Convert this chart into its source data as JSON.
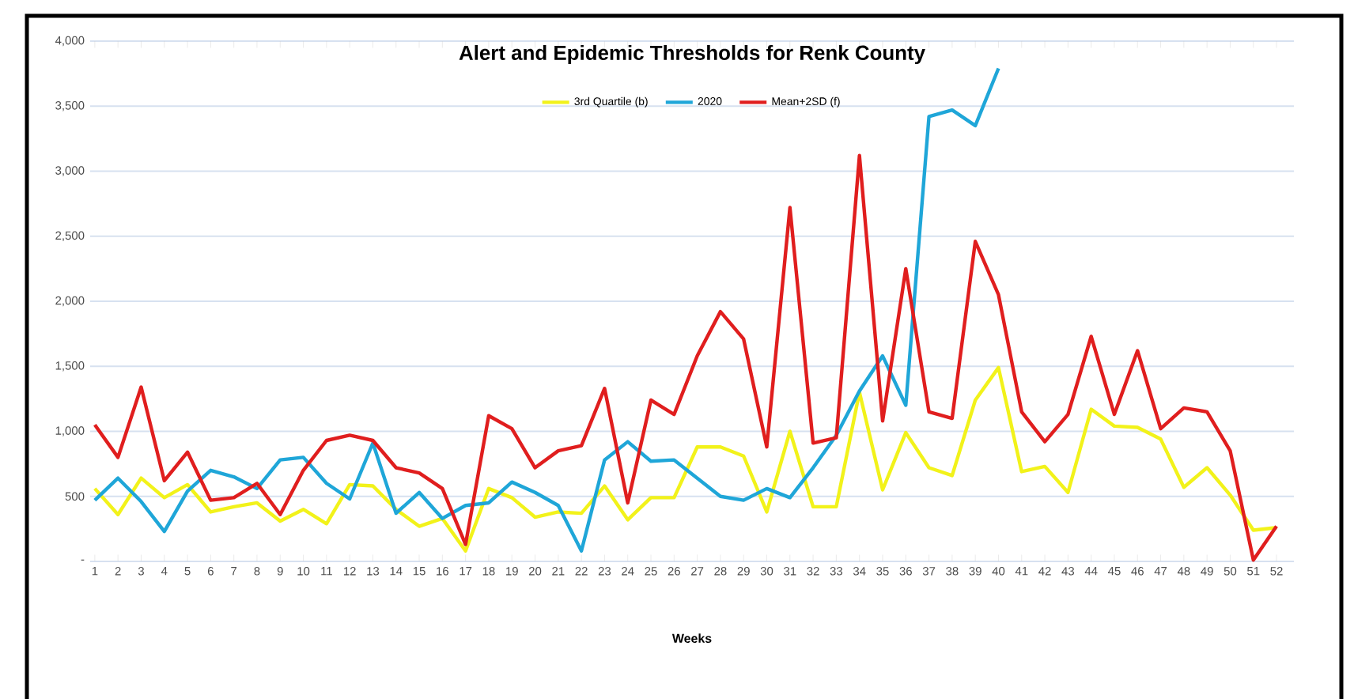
{
  "chart_data": {
    "type": "line",
    "title": "Alert and Epidemic Thresholds for Renk County",
    "xlabel": "Weeks",
    "categories": [
      "1",
      "2",
      "3",
      "4",
      "5",
      "6",
      "7",
      "8",
      "9",
      "10",
      "11",
      "12",
      "13",
      "14",
      "15",
      "16",
      "17",
      "18",
      "19",
      "20",
      "21",
      "22",
      "23",
      "24",
      "25",
      "26",
      "27",
      "28",
      "29",
      "30",
      "31",
      "32",
      "33",
      "34",
      "35",
      "36",
      "37",
      "38",
      "39",
      "40",
      "41",
      "42",
      "43",
      "44",
      "45",
      "46",
      "47",
      "48",
      "49",
      "50",
      "51",
      "52"
    ],
    "series": [
      {
        "name": "3rd Quartile (b)",
        "color": "#f2f21a",
        "values": [
          560,
          360,
          640,
          490,
          590,
          380,
          420,
          450,
          310,
          400,
          290,
          590,
          580,
          400,
          270,
          330,
          80,
          560,
          490,
          340,
          380,
          370,
          580,
          320,
          490,
          490,
          880,
          880,
          810,
          380,
          1000,
          420,
          420,
          1300,
          550,
          990,
          720,
          660,
          1240,
          1490,
          690,
          730,
          530,
          1170,
          1040,
          1030,
          940,
          570,
          720,
          510,
          240,
          260
        ]
      },
      {
        "name": "2020",
        "color": "#1fa6d8",
        "values": [
          470,
          640,
          460,
          230,
          540,
          700,
          650,
          560,
          780,
          800,
          600,
          480,
          910,
          370,
          530,
          330,
          430,
          450,
          610,
          530,
          430,
          80,
          780,
          920,
          770,
          780,
          640,
          500,
          470,
          560,
          490,
          720,
          970,
          1310,
          1580,
          1200,
          3420,
          3470,
          3350,
          3790,
          null,
          null,
          null,
          null,
          null,
          null,
          null,
          null,
          null,
          null,
          null,
          null
        ]
      },
      {
        "name": "Mean+2SD (f)",
        "color": "#e01e1e",
        "values": [
          1050,
          800,
          1340,
          620,
          840,
          470,
          490,
          600,
          360,
          700,
          930,
          970,
          930,
          720,
          680,
          560,
          130,
          1120,
          1020,
          720,
          850,
          890,
          1330,
          450,
          1240,
          1130,
          1580,
          1920,
          1710,
          880,
          2720,
          910,
          950,
          3120,
          1080,
          2250,
          1150,
          1100,
          2460,
          2050,
          1150,
          920,
          1130,
          1730,
          1130,
          1620,
          1020,
          1180,
          1150,
          850,
          10,
          270
        ]
      }
    ],
    "ylim": [
      0,
      4000
    ],
    "yticks": [
      {
        "value": 0,
        "label": "-"
      },
      {
        "value": 500,
        "label": "500"
      },
      {
        "value": 1000,
        "label": "1,000"
      },
      {
        "value": 1500,
        "label": "1,500"
      },
      {
        "value": 2000,
        "label": "2,000"
      },
      {
        "value": 2500,
        "label": "2,500"
      },
      {
        "value": 3000,
        "label": "3,000"
      },
      {
        "value": 3500,
        "label": "3,500"
      },
      {
        "value": 4000,
        "label": "4,000"
      }
    ],
    "grid": "y",
    "legend": "top",
    "marker": "none",
    "line_style": "solid"
  }
}
